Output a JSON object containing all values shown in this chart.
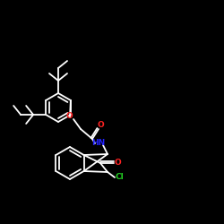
{
  "background": "#000000",
  "bond_color": "#ffffff",
  "atom_colors": {
    "N": "#2222ff",
    "O": "#ff2222",
    "Cl": "#22cc22"
  },
  "font_size": 7.5,
  "bond_width": 1.2
}
